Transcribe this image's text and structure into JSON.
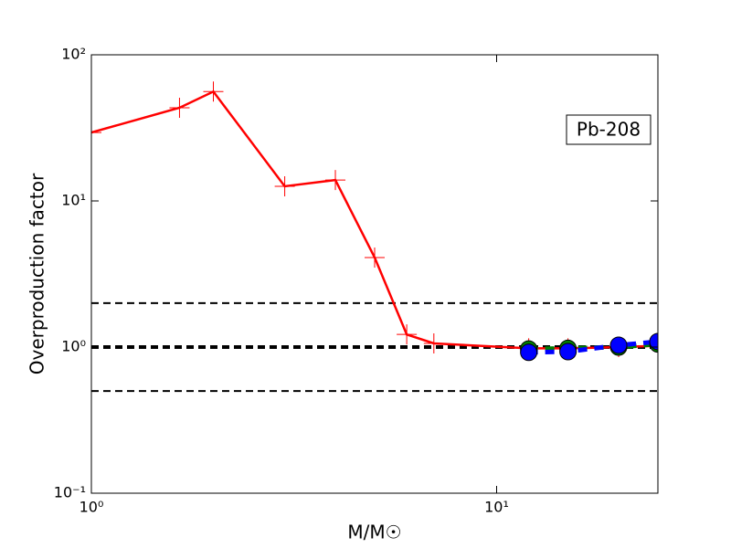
{
  "chart_data": {
    "type": "line",
    "xlabel": "M/M☉",
    "ylabel": "Overproduction factor",
    "annotation": "Pb-208",
    "log_x": true,
    "log_y": true,
    "xlim": [
      1,
      25
    ],
    "ylim": [
      0.1,
      100
    ],
    "xticks": [
      {
        "value": 1,
        "label": "10⁰"
      },
      {
        "value": 10,
        "label": "10¹"
      }
    ],
    "yticks": [
      {
        "value": 0.1,
        "label": "10⁻¹"
      },
      {
        "value": 1,
        "label": "10⁰"
      },
      {
        "value": 10,
        "label": "10¹"
      },
      {
        "value": 100,
        "label": "10²"
      }
    ],
    "hlines": [
      2,
      1,
      0.5
    ],
    "series": [
      {
        "color": "#ff0000",
        "marker": "plus",
        "dash": false,
        "x": [
          1,
          1.65,
          2,
          3,
          4,
          5,
          6,
          7,
          12,
          15,
          20,
          25
        ],
        "values": [
          29.4,
          43.4,
          56,
          12.6,
          13.9,
          4.1,
          1.22,
          1.06,
          0.98,
          0.98,
          1.0,
          1.02
        ]
      },
      {
        "color": "#008000",
        "marker": "circle",
        "dash": true,
        "x": [
          12,
          15,
          20,
          25
        ],
        "values": [
          0.97,
          0.98,
          1.0,
          1.05
        ]
      },
      {
        "color": "#0000ff",
        "marker": "circle",
        "dash": true,
        "x": [
          12,
          15,
          20,
          25
        ],
        "values": [
          0.92,
          0.93,
          1.03,
          1.09
        ]
      }
    ]
  }
}
